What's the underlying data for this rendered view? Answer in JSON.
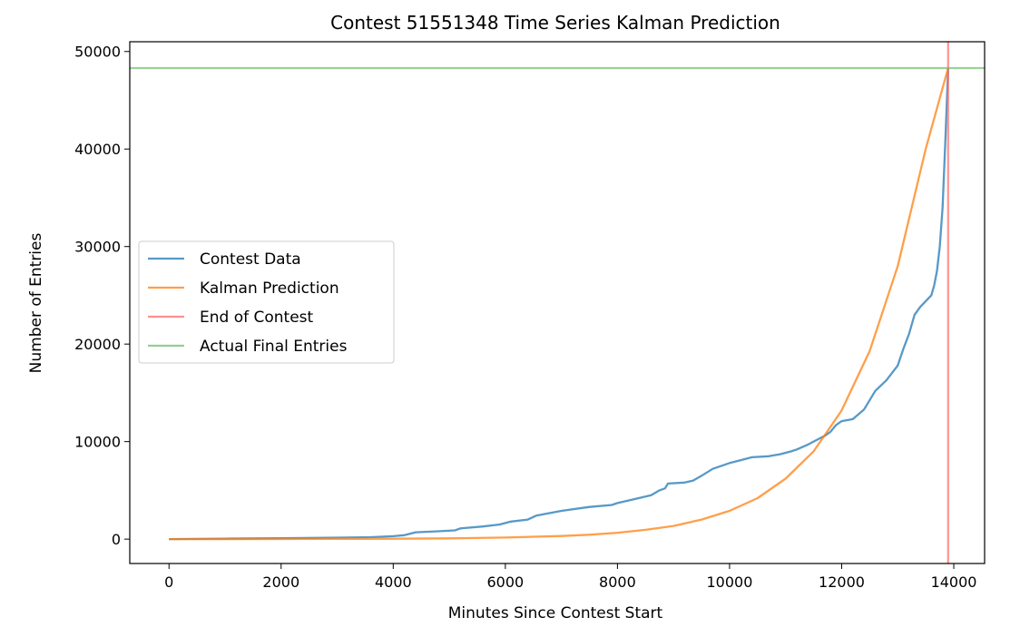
{
  "chart_data": {
    "type": "line",
    "title": "Contest 51551348 Time Series Kalman Prediction",
    "xlabel": "Minutes Since Contest Start",
    "ylabel": "Number of Entries",
    "xlim": [
      -700,
      14550
    ],
    "ylim": [
      -2500,
      51000
    ],
    "xticks": [
      0,
      2000,
      4000,
      6000,
      8000,
      10000,
      12000,
      14000
    ],
    "yticks": [
      0,
      10000,
      20000,
      30000,
      40000,
      50000
    ],
    "grid": false,
    "legend_position": "center-left",
    "series": [
      {
        "name": "Contest Data",
        "color": "#1f77b4",
        "x": [
          0,
          1000,
          2000,
          3000,
          3600,
          4000,
          4200,
          4400,
          4800,
          5100,
          5200,
          5600,
          5900,
          6100,
          6400,
          6550,
          7000,
          7500,
          7900,
          8000,
          8300,
          8600,
          8750,
          8850,
          8900,
          9200,
          9350,
          9500,
          9700,
          9900,
          10000,
          10200,
          10400,
          10700,
          10900,
          11100,
          11200,
          11400,
          11600,
          11700,
          11800,
          11900,
          12000,
          12200,
          12400,
          12600,
          12800,
          13000,
          13100,
          13200,
          13300,
          13400,
          13500,
          13600,
          13650,
          13700,
          13750,
          13800,
          13850,
          13900
        ],
        "y": [
          0,
          50,
          100,
          150,
          200,
          300,
          400,
          700,
          800,
          900,
          1100,
          1300,
          1500,
          1800,
          2000,
          2400,
          2900,
          3300,
          3500,
          3700,
          4100,
          4500,
          5000,
          5200,
          5700,
          5800,
          6000,
          6500,
          7200,
          7600,
          7800,
          8100,
          8400,
          8500,
          8700,
          9000,
          9200,
          9700,
          10300,
          10600,
          11000,
          11700,
          12100,
          12300,
          13300,
          15200,
          16300,
          17800,
          19500,
          21000,
          23000,
          23800,
          24400,
          25000,
          26000,
          27500,
          30000,
          34000,
          41000,
          48300
        ]
      },
      {
        "name": "Kalman Prediction",
        "color": "#ff7f0e",
        "x": [
          0,
          1000,
          2000,
          3000,
          4000,
          5000,
          6000,
          7000,
          7500,
          8000,
          8500,
          9000,
          9500,
          10000,
          10500,
          11000,
          11500,
          12000,
          12500,
          13000,
          13500,
          13900
        ],
        "y": [
          0,
          5,
          10,
          20,
          40,
          80,
          160,
          320,
          450,
          650,
          950,
          1350,
          2000,
          2900,
          4200,
          6200,
          9000,
          13200,
          19300,
          28000,
          40000,
          48300
        ]
      },
      {
        "name": "End of Contest",
        "color": "#ff6b6b",
        "x": [
          13900,
          13900
        ],
        "y": [
          -2500,
          51000
        ]
      },
      {
        "name": "Actual Final Entries",
        "color": "#6dbf6d",
        "x": [
          -700,
          14550
        ],
        "y": [
          48300,
          48300
        ]
      }
    ]
  }
}
